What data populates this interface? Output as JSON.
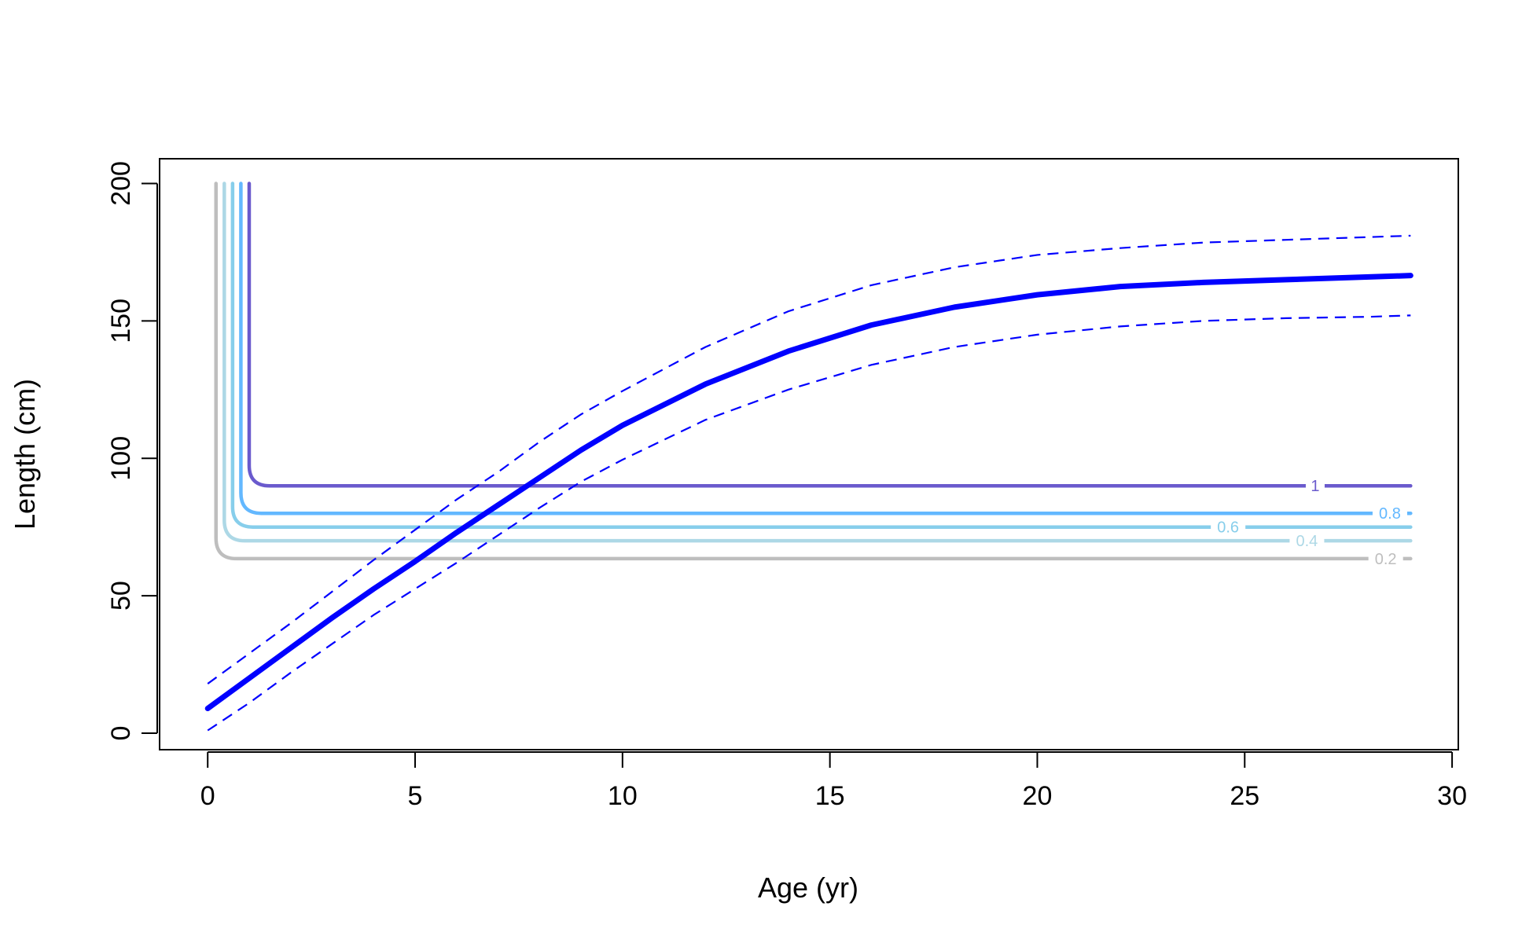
{
  "chart_data": {
    "type": "line",
    "title": "",
    "xlabel": "Age (yr)",
    "ylabel": "Length (cm)",
    "xlim": [
      -1.16,
      30.15
    ],
    "ylim": [
      -6,
      209
    ],
    "xticks": [
      "0",
      "5",
      "10",
      "15",
      "20",
      "25",
      "30"
    ],
    "yticks": [
      "0",
      "50",
      "100",
      "150",
      "200"
    ],
    "grid": false,
    "legend": "none",
    "series": [
      {
        "role": "growth-mean",
        "color": "#0000ff",
        "style": "solid",
        "x": [
          0,
          1,
          2,
          3,
          4,
          5,
          6,
          7,
          8,
          9,
          10,
          12,
          14,
          16,
          18,
          20,
          22,
          24,
          26,
          28,
          29
        ],
        "y": [
          9,
          20,
          31,
          42,
          52.5,
          62.5,
          73,
          83,
          93,
          103,
          112,
          127,
          139,
          148.5,
          155,
          159.5,
          162.5,
          164,
          165,
          166,
          166.5
        ]
      },
      {
        "role": "growth-upper",
        "color": "#0000ff",
        "style": "dashed",
        "x": [
          0,
          1,
          2,
          3,
          4,
          5,
          6,
          7,
          8,
          9,
          10,
          12,
          14,
          16,
          18,
          20,
          22,
          24,
          26,
          28,
          29
        ],
        "y": [
          18,
          29,
          40,
          51.5,
          63,
          74,
          85,
          95,
          106,
          116,
          124.5,
          140.5,
          153.5,
          163,
          169.5,
          174,
          176.5,
          178.5,
          179.5,
          180.5,
          181
        ]
      },
      {
        "role": "growth-lower",
        "color": "#0000ff",
        "style": "dashed",
        "x": [
          0,
          1,
          2,
          3,
          4,
          5,
          6,
          7,
          8,
          9,
          10,
          12,
          14,
          16,
          18,
          20,
          22,
          24,
          26,
          28,
          29
        ],
        "y": [
          1,
          11,
          22,
          32.5,
          43,
          52.5,
          62,
          72,
          82,
          91.5,
          99.5,
          114,
          125,
          134,
          140.5,
          145,
          148,
          150,
          151,
          151.5,
          152
        ]
      }
    ],
    "selectivity_contours": [
      {
        "level": "0.2",
        "color": "#bebebe",
        "x_vertical": 0.2,
        "y_flat": 63.5,
        "label_x": 28.4
      },
      {
        "level": "0.4",
        "color": "#add8e6",
        "x_vertical": 0.4,
        "y_flat": 70,
        "label_x": 26.5
      },
      {
        "level": "0.6",
        "color": "#87ceeb",
        "x_vertical": 0.6,
        "y_flat": 75,
        "label_x": 24.6
      },
      {
        "level": "0.8",
        "color": "#63b8ff",
        "x_vertical": 0.8,
        "y_flat": 80,
        "label_x": 28.5
      },
      {
        "level": "1",
        "color": "#6a5acd",
        "x_vertical": 1.0,
        "y_flat": 90,
        "label_x": 26.7
      }
    ]
  }
}
